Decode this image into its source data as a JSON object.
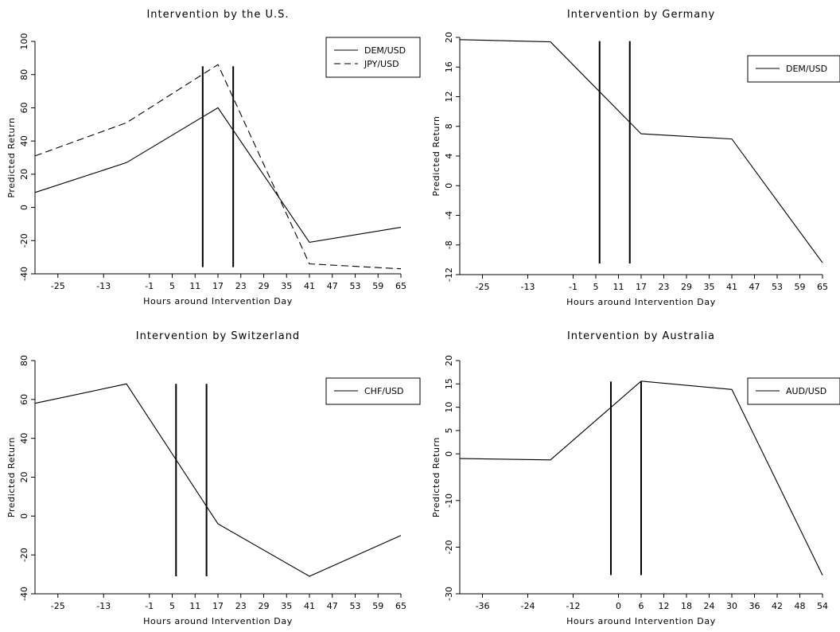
{
  "chart_data": [
    {
      "type": "line",
      "title": "Intervention by the U.S.",
      "xlabel": "Hours around Intervention Day",
      "ylabel": "Predicted Return",
      "xlim": [
        -31,
        65
      ],
      "ylim": [
        -40,
        100
      ],
      "xticks": [
        -25,
        -13,
        -1,
        5,
        11,
        17,
        23,
        29,
        35,
        41,
        47,
        53,
        59,
        65
      ],
      "yticks": [
        -40,
        -20,
        0,
        20,
        40,
        60,
        80,
        100
      ],
      "legend_position": "top-right",
      "vlines": [
        {
          "x": 13,
          "y": [
            -36,
            85
          ]
        },
        {
          "x": 21,
          "y": [
            -36,
            85
          ]
        }
      ],
      "series": [
        {
          "name": "DEM/USD",
          "style": "solid",
          "x": [
            -31,
            -7,
            17,
            41,
            65
          ],
          "y": [
            9,
            27,
            60,
            -21,
            -12
          ]
        },
        {
          "name": "JPY/USD",
          "style": "dashed",
          "x": [
            -31,
            -7,
            17,
            41,
            65
          ],
          "y": [
            31,
            51,
            86,
            -34,
            -37
          ]
        }
      ]
    },
    {
      "type": "line",
      "title": "Intervention by Germany",
      "xlabel": "Hours around Intervention Day",
      "ylabel": "Predicted Return",
      "xlim": [
        -31,
        65
      ],
      "ylim": [
        -12,
        20
      ],
      "xticks": [
        -25,
        -13,
        -1,
        5,
        11,
        17,
        23,
        29,
        35,
        41,
        47,
        53,
        59,
        65
      ],
      "yticks": [
        -12,
        -8,
        -4,
        0,
        4,
        8,
        12,
        16,
        20
      ],
      "legend_position": "top-right",
      "vlines": [
        {
          "x": 6,
          "y": [
            -10.5,
            19.5
          ]
        },
        {
          "x": 14,
          "y": [
            -10.5,
            19.5
          ]
        }
      ],
      "series": [
        {
          "name": "DEM/USD",
          "style": "solid",
          "x": [
            -31,
            -7,
            17,
            41,
            65
          ],
          "y": [
            19.7,
            19.4,
            7,
            6.3,
            -10.4
          ]
        }
      ]
    },
    {
      "type": "line",
      "title": "Intervention by Switzerland",
      "xlabel": "Hours around Intervention Day",
      "ylabel": "Predicted Return",
      "xlim": [
        -31,
        65
      ],
      "ylim": [
        -40,
        80
      ],
      "xticks": [
        -25,
        -13,
        -1,
        5,
        11,
        17,
        23,
        29,
        35,
        41,
        47,
        53,
        59,
        65
      ],
      "yticks": [
        -40,
        -20,
        0,
        20,
        40,
        60,
        80
      ],
      "legend_position": "top-right",
      "vlines": [
        {
          "x": 6,
          "y": [
            -31,
            68
          ]
        },
        {
          "x": 14,
          "y": [
            -31,
            68
          ]
        }
      ],
      "series": [
        {
          "name": "CHF/USD",
          "style": "solid",
          "x": [
            -31,
            -7,
            17,
            41,
            65
          ],
          "y": [
            58,
            68,
            -4,
            -31,
            -10
          ]
        }
      ]
    },
    {
      "type": "line",
      "title": "Intervention by Australia",
      "xlabel": "Hours around Intervention Day",
      "ylabel": "Predicted Return",
      "xlim": [
        -42,
        54
      ],
      "ylim": [
        -30,
        20
      ],
      "xticks": [
        -36,
        -24,
        -12,
        0,
        6,
        12,
        18,
        24,
        30,
        36,
        42,
        48,
        54
      ],
      "yticks": [
        -30,
        -20,
        -10,
        0,
        5,
        10,
        15,
        20
      ],
      "legend_position": "top-right",
      "vlines": [
        {
          "x": -2,
          "y": [
            -26,
            15.5
          ]
        },
        {
          "x": 6,
          "y": [
            -26,
            15.5
          ]
        }
      ],
      "series": [
        {
          "name": "AUD/USD",
          "style": "solid",
          "x": [
            -42,
            -18,
            6,
            30,
            54
          ],
          "y": [
            -1,
            -1.3,
            15.6,
            13.8,
            -26
          ]
        }
      ]
    }
  ]
}
